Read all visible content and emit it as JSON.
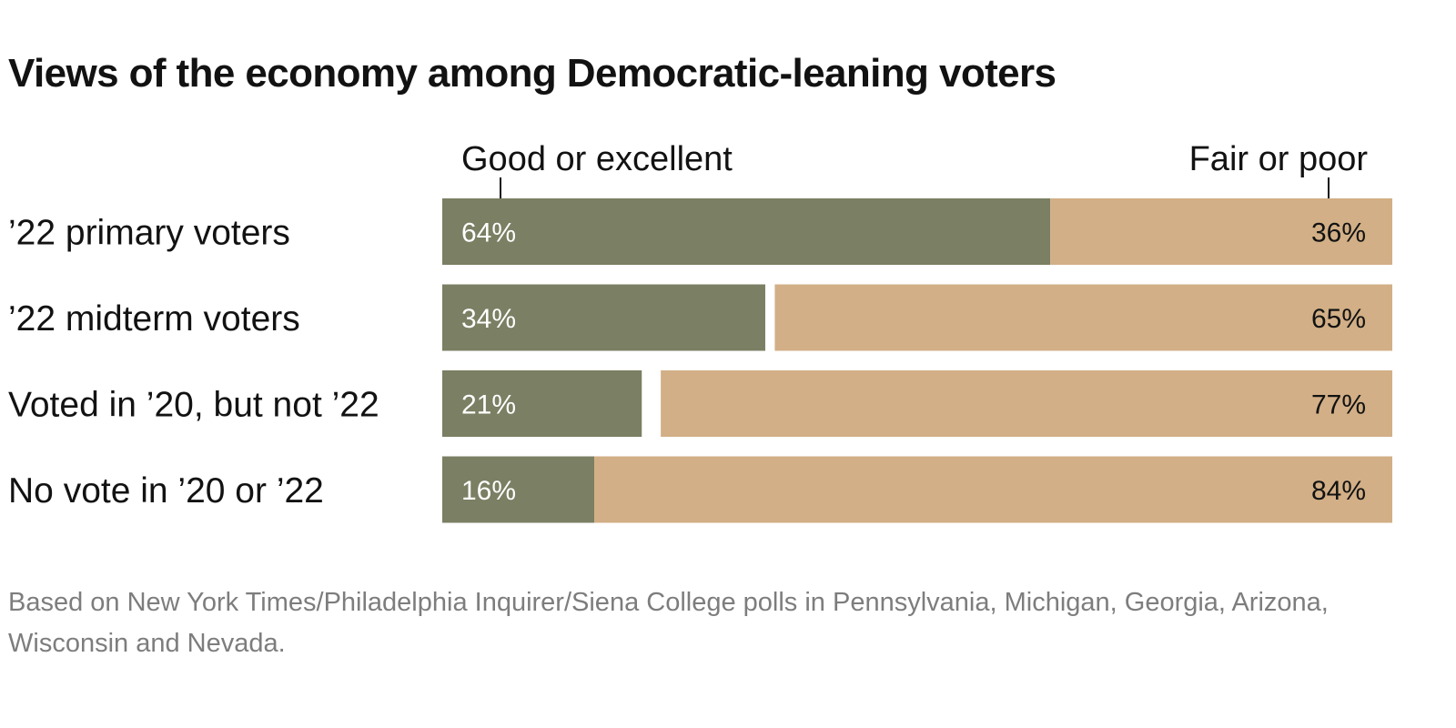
{
  "chart_data": {
    "type": "bar",
    "stacked": true,
    "orientation": "horizontal",
    "title": "Views of the economy among Democratic-leaning voters",
    "note": "Based on New York Times/Philadelphia Inquirer/Siena College polls in Pennsylvania, Michigan, Georgia, Arizona, Wisconsin and Nevada.",
    "categories": [
      "’22 primary voters",
      "’22 midterm voters",
      "Voted in ’20, but not ’22",
      "No vote in ’20 or ’22"
    ],
    "series": [
      {
        "name": "Good or excellent",
        "values": [
          64,
          34,
          21,
          16
        ],
        "labels": [
          "64%",
          "34%",
          "21%",
          "16%"
        ],
        "color": "#7b7f63"
      },
      {
        "name": "Fair or poor",
        "values": [
          36,
          65,
          77,
          84
        ],
        "labels": [
          "36%",
          "65%",
          "77%",
          "84%"
        ],
        "color": "#d2af86"
      }
    ],
    "xlim": [
      0,
      100
    ],
    "grid": false,
    "legend": "top"
  }
}
